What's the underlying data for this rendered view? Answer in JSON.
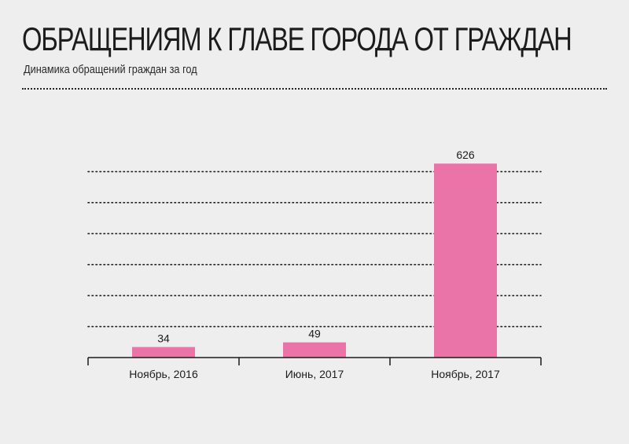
{
  "header": {
    "title": "ОБРАЩЕНИЯМ К ГЛАВЕ ГОРОДА ОТ ГРАЖДАН",
    "subtitle": "Динамика обращений граждан за год"
  },
  "chart_data": {
    "type": "bar",
    "categories": [
      "Ноябрь, 2016",
      "Июнь, 2017",
      "Ноябрь, 2017"
    ],
    "values": [
      34,
      49,
      626
    ],
    "data_labels": [
      "34",
      "49",
      "626"
    ],
    "ylim": [
      0,
      700
    ],
    "grid": true,
    "grid_style": "dotted",
    "y_ticks_labeled": false,
    "bar_color": "#ea73a8"
  },
  "colors": {
    "background": "#efeeef",
    "text": "#1c1c1c",
    "bar": "#ea73a8"
  }
}
